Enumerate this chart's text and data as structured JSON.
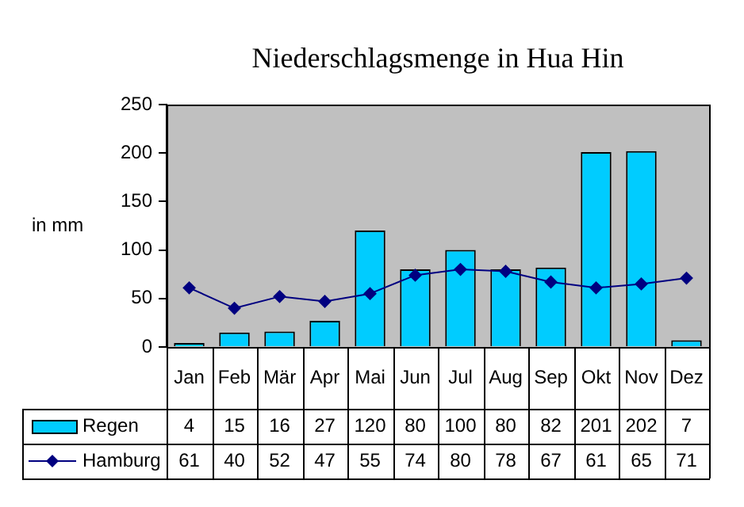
{
  "chart_data": {
    "type": "bar",
    "title": "Niederschlagsmenge in Hua Hin",
    "ylabel": "in mm",
    "categories": [
      "Jan",
      "Feb",
      "Mär",
      "Apr",
      "Mai",
      "Jun",
      "Jul",
      "Aug",
      "Sep",
      "Okt",
      "Nov",
      "Dez"
    ],
    "series": [
      {
        "name": "Regen",
        "color": "#00ccff",
        "values": [
          4,
          15,
          16,
          27,
          120,
          80,
          100,
          80,
          82,
          201,
          202,
          7
        ]
      },
      {
        "name": "Hamburg",
        "type": "line",
        "color": "#000080",
        "marker": "diamond",
        "values": [
          61,
          40,
          52,
          47,
          55,
          74,
          80,
          78,
          67,
          61,
          65,
          71
        ]
      }
    ],
    "ylim": [
      0,
      250
    ],
    "yticks": [
      0,
      50,
      100,
      150,
      200,
      250
    ],
    "grid": false,
    "legend": "bottom",
    "data_labels": true
  }
}
